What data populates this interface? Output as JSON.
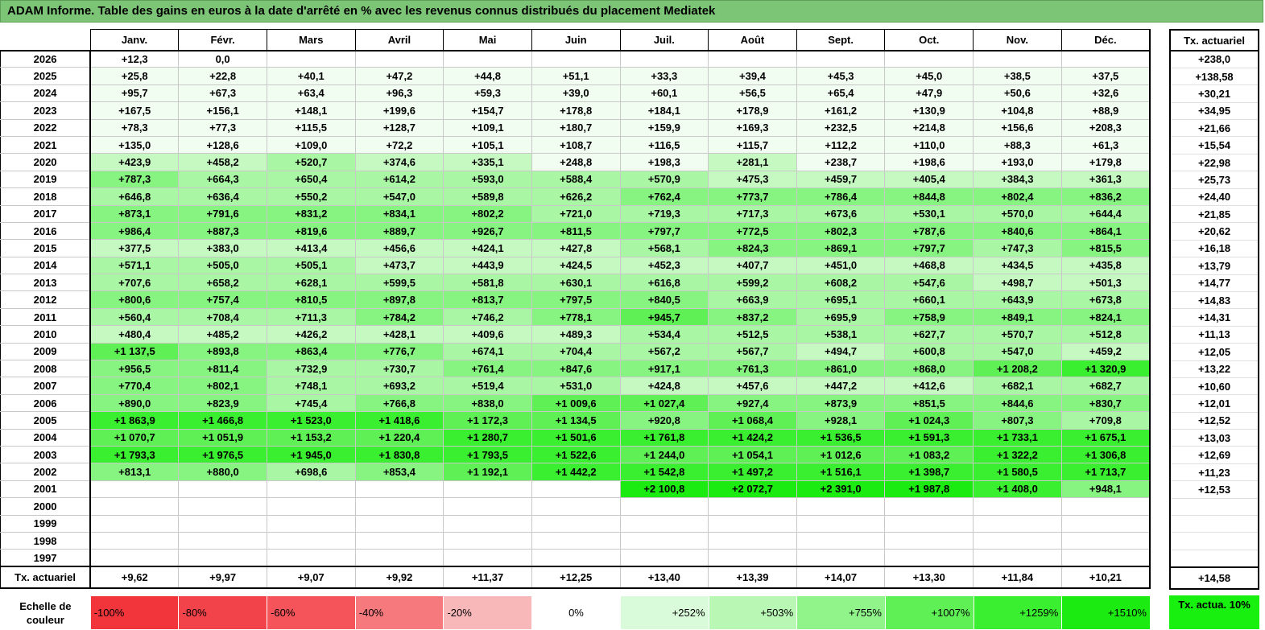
{
  "title": "ADAM Informe. Table des gains en euros à la date d'arrêté en % avec les revenus connus distribués du placement Mediatek",
  "months": [
    "Janv.",
    "Févr.",
    "Mars",
    "Avril",
    "Mai",
    "Juin",
    "Juil.",
    "Août",
    "Sept.",
    "Oct.",
    "Nov.",
    "Déc."
  ],
  "side_header": "Tx. actuariel",
  "rows": [
    {
      "year": "2026",
      "cells": [
        "+12,3",
        "0,0",
        "",
        "",
        "",
        "",
        "",
        "",
        "",
        "",
        "",
        ""
      ],
      "shades": [
        0,
        0,
        0,
        0,
        0,
        0,
        0,
        0,
        0,
        0,
        0,
        0
      ],
      "rate": "+238,0"
    },
    {
      "year": "2025",
      "cells": [
        "+25,8",
        "+22,8",
        "+40,1",
        "+47,2",
        "+44,8",
        "+51,1",
        "+33,3",
        "+39,4",
        "+45,3",
        "+45,0",
        "+38,5",
        "+37,5"
      ],
      "shades": [
        1,
        1,
        1,
        1,
        1,
        1,
        1,
        1,
        1,
        1,
        1,
        1
      ],
      "rate": "+138,58"
    },
    {
      "year": "2024",
      "cells": [
        "+95,7",
        "+67,3",
        "+63,4",
        "+96,3",
        "+59,3",
        "+39,0",
        "+60,1",
        "+56,5",
        "+65,4",
        "+47,9",
        "+50,6",
        "+32,6"
      ],
      "shades": [
        1,
        1,
        1,
        1,
        1,
        1,
        1,
        1,
        1,
        1,
        1,
        1
      ],
      "rate": "+30,21"
    },
    {
      "year": "2023",
      "cells": [
        "+167,5",
        "+156,1",
        "+148,1",
        "+199,6",
        "+154,7",
        "+178,8",
        "+184,1",
        "+178,9",
        "+161,2",
        "+130,9",
        "+104,8",
        "+88,9"
      ],
      "shades": [
        1,
        1,
        1,
        1,
        1,
        1,
        1,
        1,
        1,
        1,
        1,
        1
      ],
      "rate": "+34,95"
    },
    {
      "year": "2022",
      "cells": [
        "+78,3",
        "+77,3",
        "+115,5",
        "+128,7",
        "+109,1",
        "+180,7",
        "+159,9",
        "+169,3",
        "+232,5",
        "+214,8",
        "+156,6",
        "+208,3"
      ],
      "shades": [
        1,
        1,
        1,
        1,
        1,
        1,
        1,
        1,
        1,
        1,
        1,
        1
      ],
      "rate": "+21,66"
    },
    {
      "year": "2021",
      "cells": [
        "+135,0",
        "+128,6",
        "+109,0",
        "+72,2",
        "+105,1",
        "+108,7",
        "+116,5",
        "+115,7",
        "+112,2",
        "+110,0",
        "+88,3",
        "+61,3"
      ],
      "shades": [
        1,
        1,
        1,
        1,
        1,
        1,
        1,
        1,
        1,
        1,
        1,
        1
      ],
      "rate": "+15,54"
    },
    {
      "year": "2020",
      "cells": [
        "+423,9",
        "+458,2",
        "+520,7",
        "+374,6",
        "+335,1",
        "+248,8",
        "+198,3",
        "+281,1",
        "+238,7",
        "+198,6",
        "+193,0",
        "+179,8"
      ],
      "shades": [
        2,
        2,
        3,
        2,
        2,
        1,
        1,
        2,
        1,
        1,
        1,
        1
      ],
      "rate": "+22,98"
    },
    {
      "year": "2019",
      "cells": [
        "+787,3",
        "+664,3",
        "+650,4",
        "+614,2",
        "+593,0",
        "+588,4",
        "+570,9",
        "+475,3",
        "+459,7",
        "+405,4",
        "+384,3",
        "+361,3"
      ],
      "shades": [
        4,
        3,
        3,
        3,
        3,
        3,
        3,
        2,
        2,
        2,
        2,
        2
      ],
      "rate": "+25,73"
    },
    {
      "year": "2018",
      "cells": [
        "+646,8",
        "+636,4",
        "+550,2",
        "+547,0",
        "+589,8",
        "+626,2",
        "+762,4",
        "+773,7",
        "+786,4",
        "+844,8",
        "+802,4",
        "+836,2"
      ],
      "shades": [
        3,
        3,
        3,
        3,
        3,
        3,
        4,
        4,
        4,
        4,
        4,
        4
      ],
      "rate": "+24,40"
    },
    {
      "year": "2017",
      "cells": [
        "+873,1",
        "+791,6",
        "+831,2",
        "+834,1",
        "+802,2",
        "+721,0",
        "+719,3",
        "+717,3",
        "+673,6",
        "+530,1",
        "+570,0",
        "+644,4"
      ],
      "shades": [
        4,
        4,
        4,
        4,
        4,
        3,
        3,
        3,
        3,
        3,
        3,
        3
      ],
      "rate": "+21,85"
    },
    {
      "year": "2016",
      "cells": [
        "+986,4",
        "+887,3",
        "+819,6",
        "+889,7",
        "+926,7",
        "+811,5",
        "+797,7",
        "+772,5",
        "+802,3",
        "+787,6",
        "+840,6",
        "+864,1"
      ],
      "shades": [
        4,
        4,
        4,
        4,
        4,
        4,
        4,
        4,
        4,
        4,
        4,
        4
      ],
      "rate": "+20,62"
    },
    {
      "year": "2015",
      "cells": [
        "+377,5",
        "+383,0",
        "+413,4",
        "+456,6",
        "+424,1",
        "+427,8",
        "+568,1",
        "+824,3",
        "+869,1",
        "+797,7",
        "+747,3",
        "+815,5"
      ],
      "shades": [
        2,
        2,
        2,
        2,
        2,
        2,
        3,
        4,
        4,
        4,
        3,
        4
      ],
      "rate": "+16,18"
    },
    {
      "year": "2014",
      "cells": [
        "+571,1",
        "+505,0",
        "+505,1",
        "+473,7",
        "+443,9",
        "+424,5",
        "+452,3",
        "+407,7",
        "+451,0",
        "+468,8",
        "+434,5",
        "+435,8"
      ],
      "shades": [
        3,
        3,
        3,
        2,
        2,
        2,
        2,
        2,
        2,
        2,
        2,
        2
      ],
      "rate": "+13,79"
    },
    {
      "year": "2013",
      "cells": [
        "+707,6",
        "+658,2",
        "+628,1",
        "+599,5",
        "+581,8",
        "+630,1",
        "+616,8",
        "+599,2",
        "+608,2",
        "+547,6",
        "+498,7",
        "+501,3"
      ],
      "shades": [
        3,
        3,
        3,
        3,
        3,
        3,
        3,
        3,
        3,
        3,
        2,
        2
      ],
      "rate": "+14,77"
    },
    {
      "year": "2012",
      "cells": [
        "+800,6",
        "+757,4",
        "+810,5",
        "+897,8",
        "+813,7",
        "+797,5",
        "+840,5",
        "+663,9",
        "+695,1",
        "+660,1",
        "+643,9",
        "+673,8"
      ],
      "shades": [
        4,
        4,
        4,
        4,
        4,
        4,
        4,
        3,
        3,
        3,
        3,
        3
      ],
      "rate": "+14,83"
    },
    {
      "year": "2011",
      "cells": [
        "+560,4",
        "+708,4",
        "+711,3",
        "+784,2",
        "+746,2",
        "+778,1",
        "+945,7",
        "+837,2",
        "+695,9",
        "+758,9",
        "+849,1",
        "+824,1"
      ],
      "shades": [
        3,
        3,
        3,
        4,
        3,
        4,
        5,
        4,
        3,
        4,
        4,
        4
      ],
      "rate": "+14,31"
    },
    {
      "year": "2010",
      "cells": [
        "+480,4",
        "+485,2",
        "+426,2",
        "+428,1",
        "+409,6",
        "+489,3",
        "+534,4",
        "+512,5",
        "+538,1",
        "+627,7",
        "+570,7",
        "+512,8"
      ],
      "shades": [
        2,
        2,
        2,
        2,
        2,
        2,
        3,
        3,
        3,
        3,
        3,
        3
      ],
      "rate": "+11,13"
    },
    {
      "year": "2009",
      "cells": [
        "+1 137,5",
        "+893,8",
        "+863,4",
        "+776,7",
        "+674,1",
        "+704,4",
        "+567,2",
        "+567,7",
        "+494,7",
        "+600,8",
        "+547,0",
        "+459,2"
      ],
      "shades": [
        5,
        4,
        4,
        4,
        3,
        3,
        3,
        3,
        2,
        3,
        3,
        2
      ],
      "rate": "+12,05"
    },
    {
      "year": "2008",
      "cells": [
        "+956,5",
        "+811,4",
        "+732,9",
        "+730,7",
        "+761,4",
        "+847,6",
        "+917,1",
        "+761,3",
        "+861,0",
        "+868,0",
        "+1 208,2",
        "+1 320,9"
      ],
      "shades": [
        4,
        4,
        3,
        3,
        4,
        4,
        4,
        4,
        4,
        4,
        5,
        6
      ],
      "rate": "+13,22"
    },
    {
      "year": "2007",
      "cells": [
        "+770,4",
        "+802,1",
        "+748,1",
        "+693,2",
        "+519,4",
        "+531,0",
        "+424,8",
        "+457,6",
        "+447,2",
        "+412,6",
        "+682,1",
        "+682,7"
      ],
      "shades": [
        4,
        4,
        3,
        3,
        3,
        3,
        2,
        2,
        2,
        2,
        3,
        3
      ],
      "rate": "+10,60"
    },
    {
      "year": "2006",
      "cells": [
        "+890,0",
        "+823,9",
        "+745,4",
        "+766,8",
        "+838,0",
        "+1 009,6",
        "+1 027,4",
        "+927,4",
        "+873,9",
        "+851,5",
        "+844,6",
        "+830,7"
      ],
      "shades": [
        4,
        4,
        3,
        4,
        4,
        5,
        5,
        4,
        4,
        4,
        4,
        4
      ],
      "rate": "+12,01"
    },
    {
      "year": "2005",
      "cells": [
        "+1 863,9",
        "+1 466,8",
        "+1 523,0",
        "+1 418,6",
        "+1 172,3",
        "+1 134,5",
        "+920,8",
        "+1 068,4",
        "+928,1",
        "+1 024,3",
        "+807,3",
        "+709,8"
      ],
      "shades": [
        6,
        6,
        6,
        6,
        5,
        5,
        4,
        5,
        4,
        5,
        4,
        3
      ],
      "rate": "+12,52"
    },
    {
      "year": "2004",
      "cells": [
        "+1 070,7",
        "+1 051,9",
        "+1 153,2",
        "+1 220,4",
        "+1 280,7",
        "+1 501,6",
        "+1 761,8",
        "+1 424,2",
        "+1 536,5",
        "+1 591,3",
        "+1 733,1",
        "+1 675,1"
      ],
      "shades": [
        5,
        5,
        5,
        5,
        6,
        6,
        6,
        6,
        6,
        6,
        6,
        6
      ],
      "rate": "+13,03"
    },
    {
      "year": "2003",
      "cells": [
        "+1 793,3",
        "+1 976,5",
        "+1 945,0",
        "+1 830,8",
        "+1 793,5",
        "+1 522,6",
        "+1 244,0",
        "+1 054,1",
        "+1 012,6",
        "+1 083,2",
        "+1 322,2",
        "+1 306,8"
      ],
      "shades": [
        6,
        6,
        6,
        6,
        6,
        6,
        5,
        5,
        5,
        5,
        6,
        6
      ],
      "rate": "+12,69"
    },
    {
      "year": "2002",
      "cells": [
        "+813,1",
        "+880,0",
        "+698,6",
        "+853,4",
        "+1 192,1",
        "+1 442,2",
        "+1 542,8",
        "+1 497,2",
        "+1 516,1",
        "+1 398,7",
        "+1 580,5",
        "+1 713,7"
      ],
      "shades": [
        4,
        4,
        3,
        4,
        5,
        6,
        6,
        6,
        6,
        6,
        6,
        6
      ],
      "rate": "+11,23"
    },
    {
      "year": "2001",
      "cells": [
        "",
        "",
        "",
        "",
        "",
        "",
        "+2 100,8",
        "+2 072,7",
        "+2 391,0",
        "+1 987,8",
        "+1 408,0",
        "+948,1"
      ],
      "shades": [
        0,
        0,
        0,
        0,
        0,
        0,
        7,
        7,
        7,
        7,
        6,
        4
      ],
      "rate": "+12,53"
    },
    {
      "year": "2000",
      "cells": [
        "",
        "",
        "",
        "",
        "",
        "",
        "",
        "",
        "",
        "",
        "",
        ""
      ],
      "shades": [
        0,
        0,
        0,
        0,
        0,
        0,
        0,
        0,
        0,
        0,
        0,
        0
      ],
      "rate": ""
    },
    {
      "year": "1999",
      "cells": [
        "",
        "",
        "",
        "",
        "",
        "",
        "",
        "",
        "",
        "",
        "",
        ""
      ],
      "shades": [
        0,
        0,
        0,
        0,
        0,
        0,
        0,
        0,
        0,
        0,
        0,
        0
      ],
      "rate": ""
    },
    {
      "year": "1998",
      "cells": [
        "",
        "",
        "",
        "",
        "",
        "",
        "",
        "",
        "",
        "",
        "",
        ""
      ],
      "shades": [
        0,
        0,
        0,
        0,
        0,
        0,
        0,
        0,
        0,
        0,
        0,
        0
      ],
      "rate": ""
    },
    {
      "year": "1997",
      "cells": [
        "",
        "",
        "",
        "",
        "",
        "",
        "",
        "",
        "",
        "",
        "",
        ""
      ],
      "shades": [
        0,
        0,
        0,
        0,
        0,
        0,
        0,
        0,
        0,
        0,
        0,
        0
      ],
      "rate": ""
    }
  ],
  "footer": {
    "label": "Tx. actuariel",
    "values": [
      "+9,62",
      "+9,97",
      "+9,07",
      "+9,92",
      "+11,37",
      "+12,25",
      "+13,40",
      "+13,39",
      "+14,07",
      "+13,30",
      "+11,84",
      "+10,21"
    ],
    "total": "+14,58"
  },
  "scale": {
    "label": "Echelle de couleur",
    "steps": [
      {
        "text": "-100%",
        "color": "#f2353b",
        "kind": "neg"
      },
      {
        "text": "-80%",
        "color": "#f3434a",
        "kind": "neg"
      },
      {
        "text": "-60%",
        "color": "#f4545a",
        "kind": "neg"
      },
      {
        "text": "-40%",
        "color": "#f6797d",
        "kind": "neg"
      },
      {
        "text": "-20%",
        "color": "#f8b8ba",
        "kind": "neg"
      },
      {
        "text": "0%",
        "color": "#ffffff",
        "kind": "zero"
      },
      {
        "text": "+252%",
        "color": "#dafbd9",
        "kind": "pos"
      },
      {
        "text": "+503%",
        "color": "#b9f7b5",
        "kind": "pos"
      },
      {
        "text": "+755%",
        "color": "#90f48a",
        "kind": "pos"
      },
      {
        "text": "+1007%",
        "color": "#5ff055",
        "kind": "pos"
      },
      {
        "text": "+1259%",
        "color": "#3aee30",
        "kind": "pos"
      },
      {
        "text": "+1510%",
        "color": "#1ceb12",
        "kind": "pos"
      }
    ],
    "side": "Tx. actua. 10%",
    "side_color": "#18f00f"
  },
  "shade_colors": [
    "#ffffff",
    "#f2fdf1",
    "#c6f9c2",
    "#a9f6a4",
    "#87f381",
    "#5ff055",
    "#3aee30",
    "#1ceb12"
  ]
}
